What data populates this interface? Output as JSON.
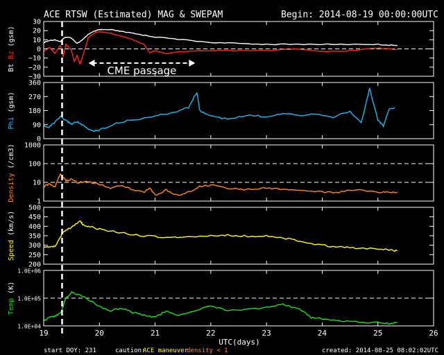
{
  "header": {
    "title": "ACE RTSW (Estimated) MAG & SWEPAM",
    "begin": "Begin: 2014-08-19 00:00:00UTC"
  },
  "footer": {
    "start_doy": "start DOY: 231",
    "caution_prefix": "caution:",
    "caution_maneuver": "ACE maneuver",
    "caution_density": "density < 1",
    "created": "created: 2014-08-25 08:02:02UTC"
  },
  "annotation": {
    "cme_label": "CME passage"
  },
  "colors": {
    "background": "#000000",
    "frame": "#ffffff",
    "bt": "#ffffff",
    "bz": "#ff2a1a",
    "phi": "#22b8f0",
    "density": "#ff8c1a",
    "speed": "#ffff00",
    "temp": "#22dd22",
    "maneuver": "#ffff00",
    "caution_density": "#ff8c1a"
  },
  "chart_data": {
    "type": "line",
    "x_axis": {
      "label": "UTC(days)",
      "range": [
        19,
        26
      ],
      "ticks": [
        "19",
        "20",
        "21",
        "22",
        "23",
        "24",
        "25",
        "26"
      ]
    },
    "event_marker_x": 19.33,
    "cme_passage": {
      "start": 19.33,
      "end": 21.72
    },
    "panels": [
      {
        "id": "mag",
        "ylabel_parts": [
          "Bt",
          "Bz",
          "(gsm)"
        ],
        "ylim": [
          -30,
          30
        ],
        "ticks": [
          30,
          20,
          10,
          0,
          -10,
          -20,
          -30
        ],
        "tick_labels": [
          "30",
          "20",
          "10",
          "0",
          "−10",
          "−20",
          "−30"
        ],
        "dashed_lines": [
          0
        ],
        "series": [
          {
            "name": "Bt",
            "x": [
              19.0,
              19.1,
              19.2,
              19.3,
              19.35,
              19.4,
              19.5,
              19.6,
              19.7,
              19.8,
              19.9,
              20.0,
              20.2,
              20.4,
              20.6,
              20.8,
              21.0,
              21.5,
              22.0,
              22.5,
              23.0,
              23.5,
              24.0,
              24.5,
              25.0,
              25.2,
              25.35
            ],
            "values": [
              7,
              9,
              10,
              8,
              11,
              13,
              12,
              6,
              10,
              16,
              19,
              21,
              21,
              19,
              17,
              15,
              13,
              10,
              7,
              6,
              5,
              5,
              5,
              5,
              5,
              4,
              4
            ]
          },
          {
            "name": "Bz",
            "x": [
              19.0,
              19.1,
              19.2,
              19.3,
              19.35,
              19.4,
              19.5,
              19.55,
              19.6,
              19.65,
              19.7,
              19.75,
              19.8,
              19.9,
              20.0,
              20.2,
              20.4,
              20.6,
              20.8,
              20.9,
              21.0,
              21.2,
              21.5,
              22.0,
              22.5,
              23.0,
              23.5,
              24.0,
              24.5,
              25.0,
              25.2,
              25.35
            ],
            "values": [
              -3,
              2,
              -5,
              4,
              -8,
              5,
              -2,
              -14,
              -7,
              -17,
              -8,
              2,
              12,
              17,
              19,
              17,
              14,
              10,
              5,
              -4,
              -2,
              -5,
              -3,
              -2,
              -2,
              -2,
              0,
              -3,
              -2,
              1,
              0,
              -1
            ]
          }
        ]
      },
      {
        "id": "phi",
        "ylabel_parts": [
          "Phi",
          "(gsm)"
        ],
        "ylim": [
          0,
          360
        ],
        "ticks": [
          360,
          270,
          180,
          90,
          0
        ],
        "tick_labels": [
          "360",
          "270",
          "180",
          "90",
          "0"
        ],
        "dashed_lines": [],
        "series": [
          {
            "name": "Phi",
            "x": [
              19.0,
              19.1,
              19.2,
              19.3,
              19.4,
              19.5,
              19.6,
              19.7,
              19.8,
              19.9,
              20.0,
              20.3,
              20.6,
              21.0,
              21.3,
              21.6,
              21.75,
              21.8,
              22.0,
              22.3,
              22.7,
              23.0,
              23.3,
              23.6,
              23.9,
              24.2,
              24.5,
              24.7,
              24.85,
              25.0,
              25.1,
              25.2,
              25.3
            ],
            "values": [
              80,
              75,
              105,
              140,
              115,
              95,
              110,
              85,
              60,
              50,
              55,
              100,
              120,
              145,
              165,
              200,
              300,
              180,
              145,
              125,
              150,
              140,
              165,
              150,
              160,
              140,
              175,
              100,
              320,
              120,
              80,
              190,
              200
            ]
          }
        ]
      },
      {
        "id": "density",
        "ylabel_parts": [
          "Density",
          "(/cm3)"
        ],
        "ylim": [
          1,
          1000
        ],
        "log": true,
        "ticks": [
          1000,
          100,
          10,
          1
        ],
        "tick_labels": [
          "1000",
          "100",
          "10",
          "1"
        ],
        "dashed_lines": [
          100,
          10,
          1
        ],
        "series": [
          {
            "name": "Density",
            "x": [
              19.0,
              19.1,
              19.2,
              19.3,
              19.4,
              19.5,
              19.6,
              19.8,
              20.0,
              20.2,
              20.4,
              20.6,
              20.8,
              20.9,
              21.0,
              21.2,
              21.4,
              21.6,
              21.8,
              22.0,
              22.3,
              22.6,
              23.0,
              23.3,
              23.6,
              24.0,
              24.3,
              24.6,
              25.0,
              25.2,
              25.35
            ],
            "values": [
              6,
              8,
              6,
              30,
              12,
              15,
              10,
              11,
              8,
              5,
              7,
              4,
              3,
              5,
              2,
              4,
              2,
              3,
              6,
              7,
              5,
              4,
              5,
              4,
              4,
              3,
              3,
              4,
              3,
              3,
              3
            ]
          }
        ]
      },
      {
        "id": "speed",
        "ylabel_parts": [
          "Speed",
          "(km/s)"
        ],
        "ylim": [
          200,
          500
        ],
        "ticks": [
          500,
          450,
          400,
          350,
          300,
          250,
          200
        ],
        "tick_labels": [
          "500",
          "450",
          "400",
          "350",
          "300",
          "250",
          "200"
        ],
        "dashed_lines": [],
        "series": [
          {
            "name": "Speed",
            "x": [
              19.0,
              19.1,
              19.2,
              19.3,
              19.35,
              19.5,
              19.65,
              19.7,
              19.8,
              20.0,
              20.3,
              20.6,
              21.0,
              21.3,
              21.6,
              22.0,
              22.3,
              22.6,
              23.0,
              23.3,
              23.6,
              24.0,
              24.3,
              24.6,
              25.0,
              25.2,
              25.35
            ],
            "values": [
              290,
              290,
              295,
              340,
              370,
              395,
              430,
              410,
              400,
              385,
              370,
              355,
              345,
              340,
              345,
              350,
              352,
              348,
              348,
              340,
              320,
              300,
              290,
              285,
              280,
              275,
              270
            ]
          }
        ]
      },
      {
        "id": "temp",
        "ylabel_parts": [
          "Temp",
          "(K)"
        ],
        "ylim": [
          10000,
          1000000
        ],
        "log": true,
        "ticks": [
          1000000,
          100000,
          10000
        ],
        "tick_labels": [
          "1.0E+06",
          "1.0E+05",
          "1.0E+04"
        ],
        "dashed_lines": [
          100000
        ],
        "series": [
          {
            "name": "Temp",
            "x": [
              19.0,
              19.1,
              19.2,
              19.3,
              19.4,
              19.5,
              19.6,
              19.7,
              19.8,
              20.0,
              20.2,
              20.4,
              20.6,
              20.8,
              21.0,
              21.2,
              21.4,
              21.6,
              21.8,
              22.0,
              22.3,
              22.6,
              23.0,
              23.3,
              23.6,
              23.8,
              24.0,
              24.3,
              24.6,
              25.0,
              25.2,
              25.35
            ],
            "values": [
              15000,
              20000,
              22000,
              28000,
              100000,
              160000,
              140000,
              120000,
              90000,
              50000,
              35000,
              45000,
              30000,
              25000,
              20000,
              35000,
              25000,
              28000,
              40000,
              55000,
              35000,
              40000,
              45000,
              60000,
              40000,
              20000,
              18000,
              15000,
              14000,
              13000,
              12000,
              13000
            ]
          }
        ]
      }
    ]
  }
}
